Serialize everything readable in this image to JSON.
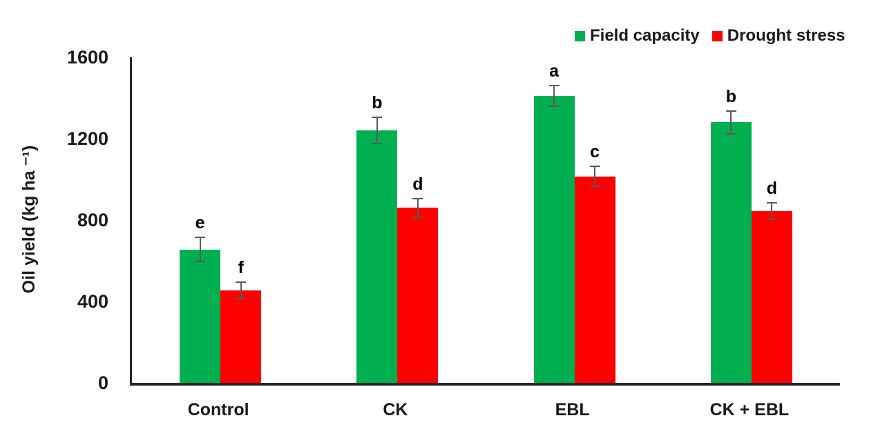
{
  "chart_data": {
    "type": "bar",
    "title": "",
    "ylabel": "Oil yield (kg ha ⁻¹)",
    "xlabel": "",
    "categories": [
      "Control",
      "CK",
      "EBL",
      "CK + EBL"
    ],
    "series": [
      {
        "name": "Field capacity",
        "color": "#00B050",
        "values": [
          655,
          1240,
          1410,
          1280
        ],
        "errors": [
          60,
          65,
          50,
          55
        ],
        "letters": [
          "e",
          "b",
          "a",
          "b"
        ]
      },
      {
        "name": "Drought stress",
        "color": "#FF0000",
        "values": [
          455,
          860,
          1015,
          845
        ],
        "errors": [
          40,
          45,
          50,
          40
        ],
        "letters": [
          "f",
          "d",
          "c",
          "d"
        ]
      }
    ],
    "ylim": [
      0,
      1600
    ],
    "yticks": [
      0,
      400,
      800,
      1200,
      1600
    ],
    "grid": false,
    "legend_position": "top-right",
    "error_bar_color": "#595959",
    "axis_color": "#262626"
  }
}
